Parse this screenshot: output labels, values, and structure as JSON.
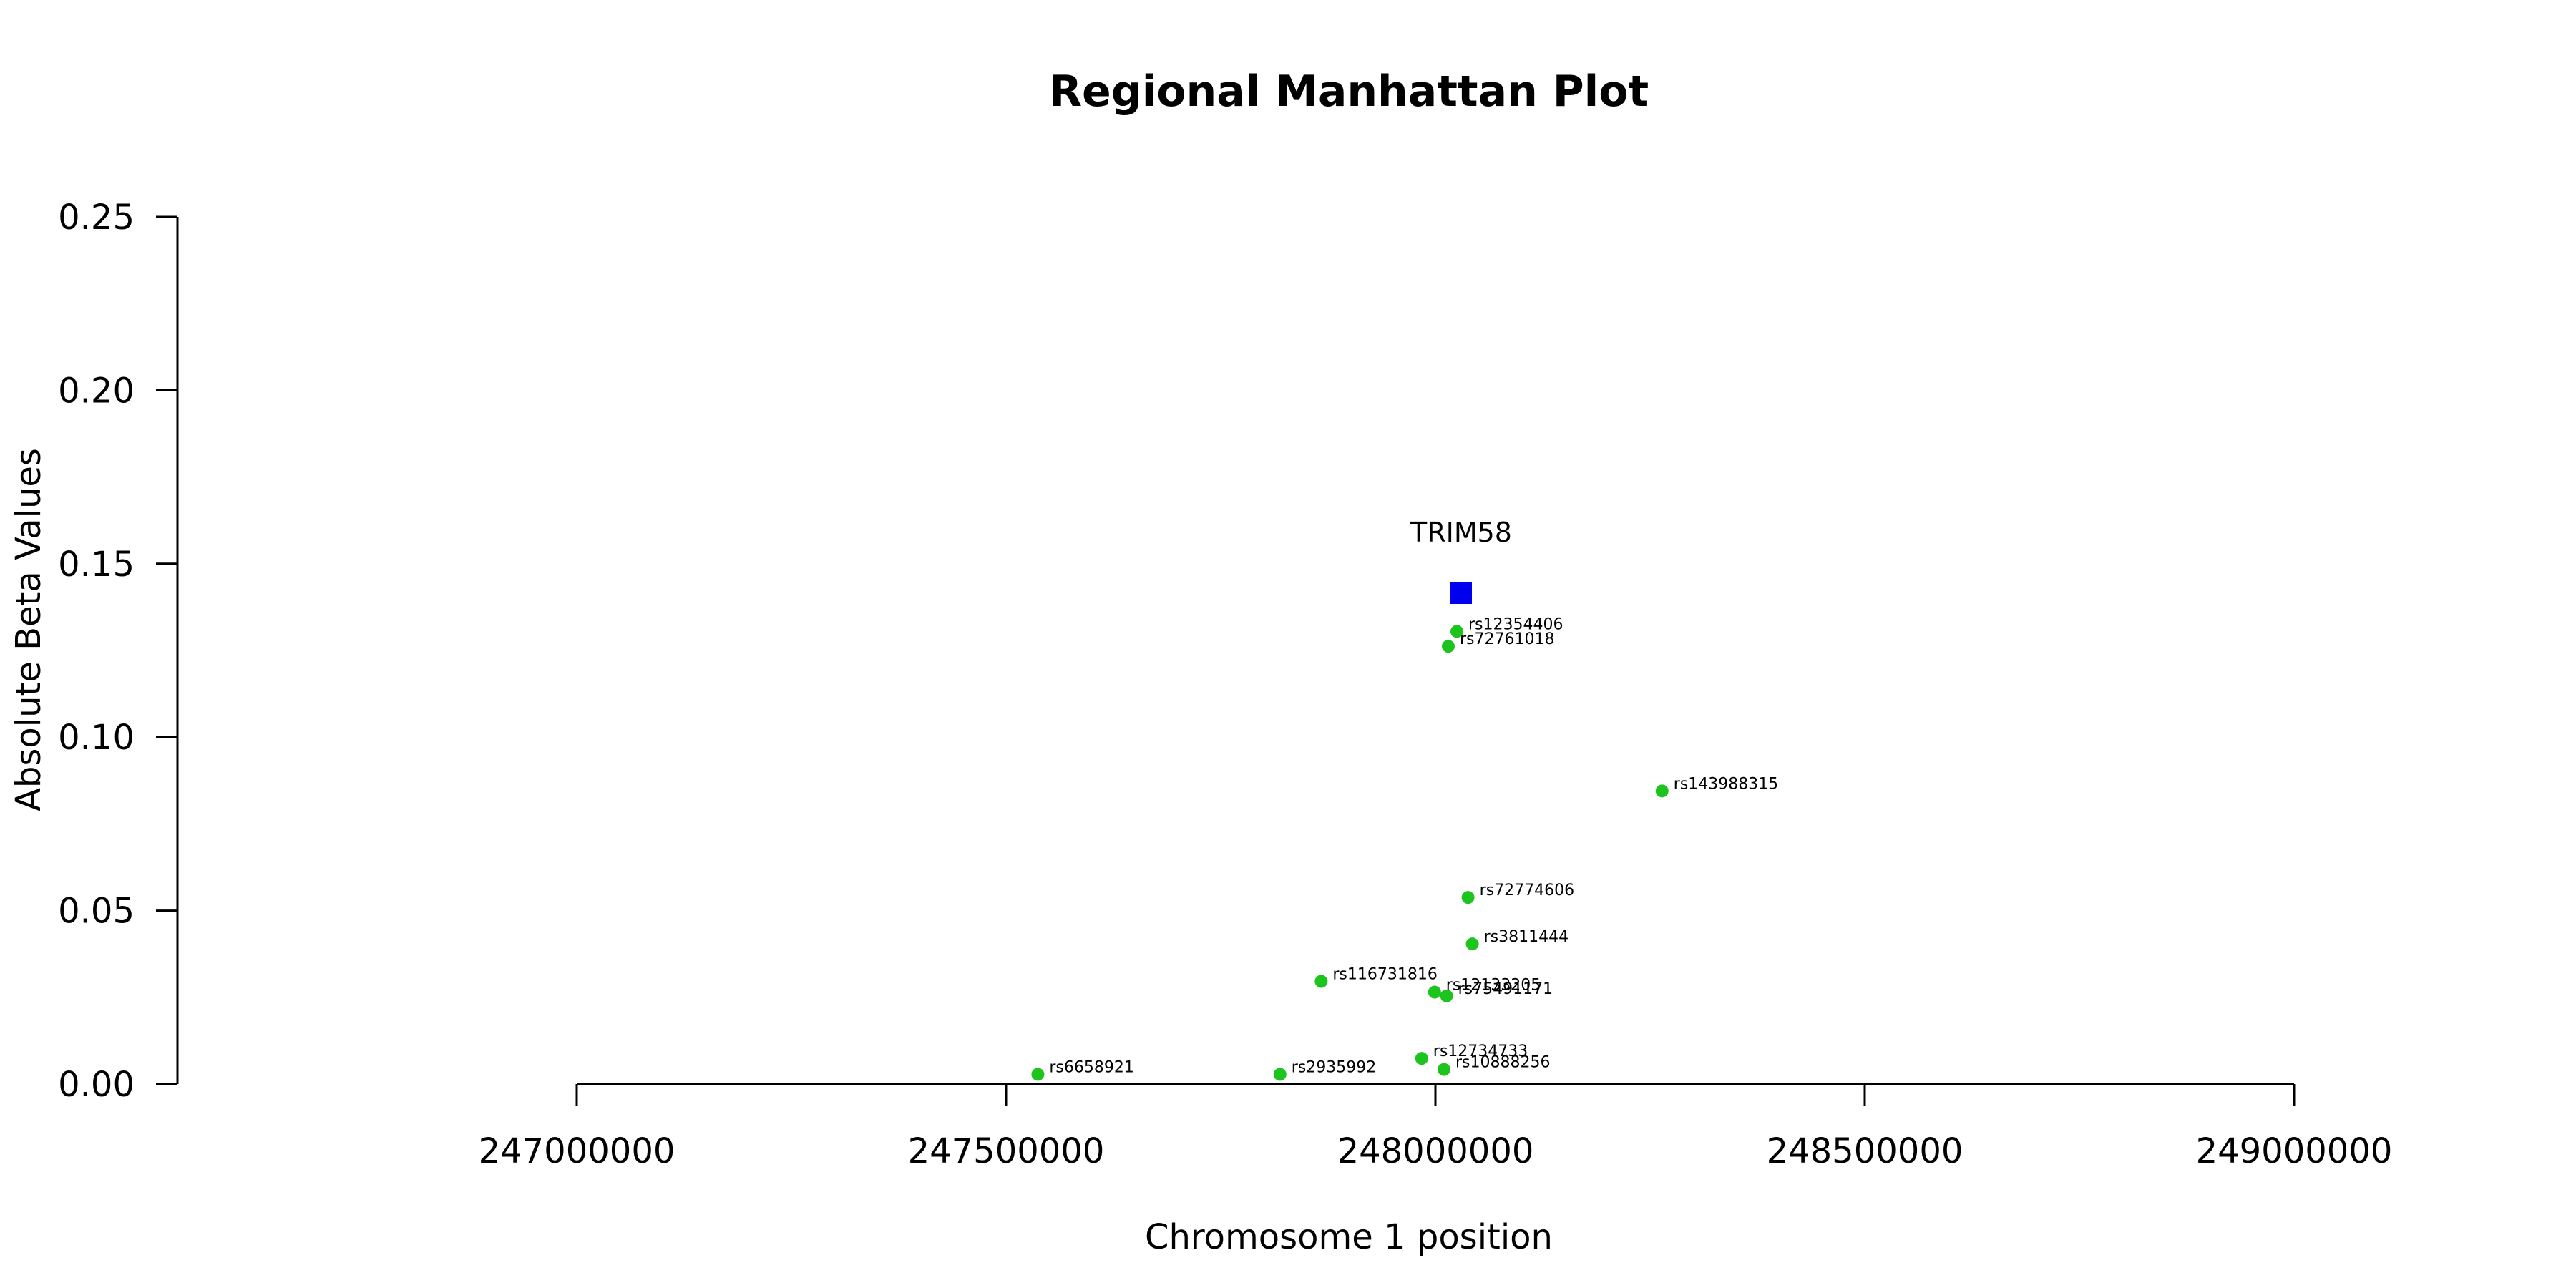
{
  "chart_data": {
    "type": "scatter",
    "title": "Regional Manhattan Plot",
    "xlabel": "Chromosome 1 position",
    "ylabel": "Absolute Beta Values",
    "xlim": [
      247000000,
      249000000
    ],
    "ylim": [
      0.0,
      0.25
    ],
    "x_ticks": [
      247000000,
      247500000,
      248000000,
      248500000,
      249000000
    ],
    "x_tick_labels": [
      "247000000",
      "247500000",
      "248000000",
      "248500000",
      "249000000"
    ],
    "y_ticks": [
      0.0,
      0.05,
      0.1,
      0.15,
      0.2,
      0.25
    ],
    "y_tick_labels": [
      "0.00",
      "0.05",
      "0.10",
      "0.15",
      "0.20",
      "0.25"
    ],
    "grid": false,
    "colors": {
      "snp": "#1ec41e",
      "gene": "#0000ee"
    },
    "gene": {
      "label": "TRIM58",
      "x": 248030000,
      "y": 0.1415
    },
    "points": [
      {
        "label": "rs12354406",
        "x": 248025000,
        "y": 0.1305
      },
      {
        "label": "rs72761018",
        "x": 248015000,
        "y": 0.1262
      },
      {
        "label": "rs143988315",
        "x": 248264000,
        "y": 0.0845
      },
      {
        "label": "rs72774606",
        "x": 248038000,
        "y": 0.0538
      },
      {
        "label": "rs3811444",
        "x": 248043000,
        "y": 0.0404
      },
      {
        "label": "rs116731816",
        "x": 247867000,
        "y": 0.0296
      },
      {
        "label": "rs12133205",
        "x": 247999000,
        "y": 0.0265
      },
      {
        "label": "rs75491171",
        "x": 248013000,
        "y": 0.0254
      },
      {
        "label": "rs12734733",
        "x": 247984000,
        "y": 0.0074
      },
      {
        "label": "rs10888256",
        "x": 248010000,
        "y": 0.0042
      },
      {
        "label": "rs6658921",
        "x": 247537000,
        "y": 0.0028
      },
      {
        "label": "rs2935992",
        "x": 247819000,
        "y": 0.0028
      }
    ]
  }
}
